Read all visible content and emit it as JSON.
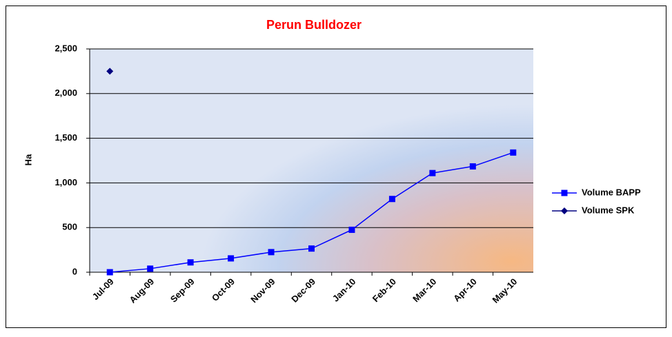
{
  "chart_data": {
    "type": "line",
    "title": "Perun Bulldozer",
    "y_label": "Ha",
    "categories": [
      "Jul-09",
      "Aug-09",
      "Sep-09",
      "Oct-09",
      "Nov-09",
      "Dec-09",
      "Jan-10",
      "Feb-10",
      "Mar-10",
      "Apr-10",
      "May-10"
    ],
    "series": [
      {
        "name": "Volume BAPP",
        "color": "#0000ff",
        "marker": "square",
        "values": [
          0,
          40,
          110,
          155,
          225,
          265,
          475,
          820,
          1110,
          1185,
          1340
        ]
      },
      {
        "name": "Volume SPK",
        "color": "#000080",
        "marker": "diamond",
        "values": [
          2250,
          null,
          null,
          null,
          null,
          null,
          null,
          null,
          null,
          null,
          null
        ]
      }
    ],
    "ylim": [
      0,
      2500
    ],
    "yticks": [
      0,
      500,
      {
        "value": 1000,
        "label": "1,000"
      },
      {
        "value": 1500,
        "label": "1,500"
      },
      {
        "value": 2000,
        "label": "2,000"
      },
      {
        "value": 2500,
        "label": "2,500"
      }
    ],
    "grid": true,
    "legend": "right"
  }
}
